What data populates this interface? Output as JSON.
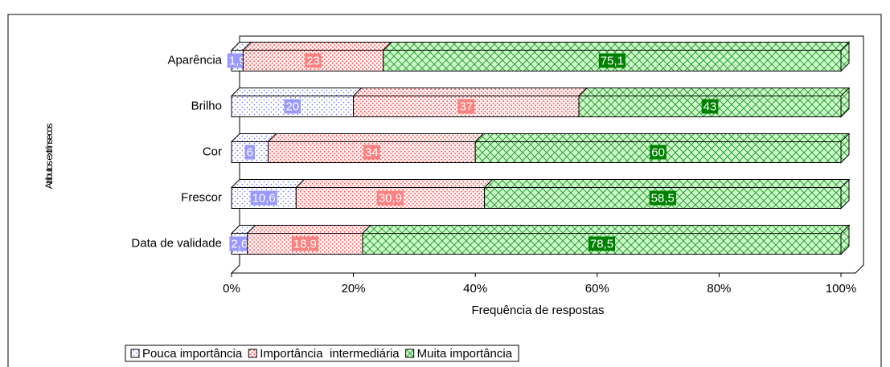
{
  "chart_data": {
    "type": "stacked_barh_percent",
    "xlabel": "Frequência de respostas",
    "ylabel": "Atributos extrínsecos",
    "categories": [
      "Aparência",
      "Brilho",
      "Cor",
      "Frescor",
      "Data de validade"
    ],
    "series": [
      {
        "name": "Pouca importância",
        "color": "#9999ff",
        "values": [
          1.9,
          20,
          6,
          10.6,
          2.6
        ],
        "value_labels": [
          "1,9",
          "20",
          "6",
          "10,6",
          "2,6"
        ]
      },
      {
        "name": "Importância  intermediária",
        "color": "#ff8080",
        "values": [
          23,
          37,
          34,
          30.9,
          18.9
        ],
        "value_labels": [
          "23",
          "37",
          "34",
          "30,9",
          "18,9"
        ]
      },
      {
        "name": "Muita importância",
        "color": "#008000",
        "values": [
          75.1,
          43,
          60,
          58.5,
          78.5
        ],
        "value_labels": [
          "75,1",
          "43",
          "60",
          "58,5",
          "78,5"
        ]
      }
    ],
    "xlim": [
      0,
      100
    ],
    "xticks": [
      {
        "value": 0,
        "label": "0%"
      },
      {
        "value": 20,
        "label": "20%"
      },
      {
        "value": 40,
        "label": "40%"
      },
      {
        "value": 60,
        "label": "60%"
      },
      {
        "value": 80,
        "label": "80%"
      },
      {
        "value": 100,
        "label": "100%"
      }
    ],
    "grid": false,
    "legend": "bottom"
  }
}
